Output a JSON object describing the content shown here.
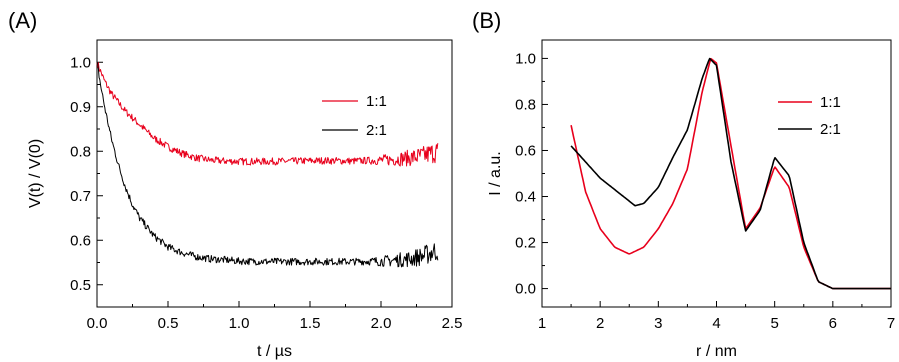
{
  "chart_data": [
    {
      "panel": "(A)",
      "type": "line",
      "xlabel": "t / µs",
      "ylabel": "V(t) / V(0)",
      "xlim": [
        0,
        2.5
      ],
      "ylim": [
        0.45,
        1.05
      ],
      "xticks": [
        "0.0",
        "0.5",
        "1.0",
        "1.5",
        "2.0",
        "2.5"
      ],
      "yticks": [
        "0.5",
        "0.6",
        "0.7",
        "0.8",
        "0.9",
        "1.0"
      ],
      "legend_position": "top-right",
      "series": [
        {
          "name": "1:1",
          "color": "#e8001c",
          "x": [
            0.0,
            0.05,
            0.1,
            0.15,
            0.2,
            0.3,
            0.4,
            0.5,
            0.6,
            0.7,
            0.8,
            0.9,
            1.0,
            1.2,
            1.4,
            1.6,
            1.8,
            2.0,
            2.1,
            2.2,
            2.3,
            2.35,
            2.4
          ],
          "y": [
            1.0,
            0.96,
            0.93,
            0.91,
            0.89,
            0.86,
            0.83,
            0.81,
            0.795,
            0.785,
            0.78,
            0.778,
            0.777,
            0.777,
            0.778,
            0.779,
            0.778,
            0.78,
            0.782,
            0.785,
            0.79,
            0.795,
            0.8
          ]
        },
        {
          "name": "2:1",
          "color": "#000000",
          "x": [
            0.0,
            0.03,
            0.06,
            0.1,
            0.15,
            0.2,
            0.25,
            0.3,
            0.4,
            0.5,
            0.6,
            0.7,
            0.8,
            0.9,
            1.0,
            1.2,
            1.4,
            1.6,
            1.8,
            2.0,
            2.1,
            2.2,
            2.3,
            2.35,
            2.4
          ],
          "y": [
            1.0,
            0.94,
            0.89,
            0.83,
            0.77,
            0.72,
            0.68,
            0.65,
            0.61,
            0.585,
            0.572,
            0.563,
            0.558,
            0.556,
            0.553,
            0.552,
            0.552,
            0.552,
            0.552,
            0.553,
            0.555,
            0.558,
            0.565,
            0.572,
            0.578
          ]
        }
      ],
      "noise_amplitude": 0.008
    },
    {
      "panel": "(B)",
      "type": "line",
      "xlabel": "r / nm",
      "ylabel": "I / a.u.",
      "xlim": [
        1,
        7
      ],
      "ylim": [
        -0.08,
        1.08
      ],
      "xticks": [
        "1",
        "2",
        "3",
        "4",
        "5",
        "6",
        "7"
      ],
      "yticks": [
        "0.0",
        "0.2",
        "0.4",
        "0.6",
        "0.8",
        "1.0"
      ],
      "legend_position": "right",
      "series": [
        {
          "name": "1:1",
          "color": "#e8001c",
          "x": [
            1.5,
            1.75,
            2.0,
            2.25,
            2.5,
            2.75,
            3.0,
            3.25,
            3.5,
            3.75,
            3.9,
            4.0,
            4.25,
            4.5,
            4.75,
            5.0,
            5.25,
            5.5,
            5.75,
            6.0,
            6.5,
            7.0
          ],
          "y": [
            0.71,
            0.42,
            0.26,
            0.18,
            0.15,
            0.18,
            0.26,
            0.37,
            0.52,
            0.85,
            1.0,
            0.98,
            0.62,
            0.26,
            0.35,
            0.53,
            0.44,
            0.18,
            0.03,
            0.0,
            0.0,
            0.0
          ]
        },
        {
          "name": "2:1",
          "color": "#000000",
          "x": [
            1.5,
            1.75,
            2.0,
            2.25,
            2.5,
            2.6,
            2.75,
            3.0,
            3.25,
            3.5,
            3.75,
            3.88,
            4.0,
            4.25,
            4.5,
            4.75,
            5.0,
            5.25,
            5.5,
            5.75,
            6.0,
            6.5,
            7.0
          ],
          "y": [
            0.62,
            0.55,
            0.48,
            0.43,
            0.38,
            0.36,
            0.37,
            0.44,
            0.57,
            0.69,
            0.91,
            1.0,
            0.97,
            0.55,
            0.25,
            0.34,
            0.57,
            0.49,
            0.2,
            0.03,
            0.0,
            0.0,
            0.0
          ]
        }
      ]
    }
  ]
}
